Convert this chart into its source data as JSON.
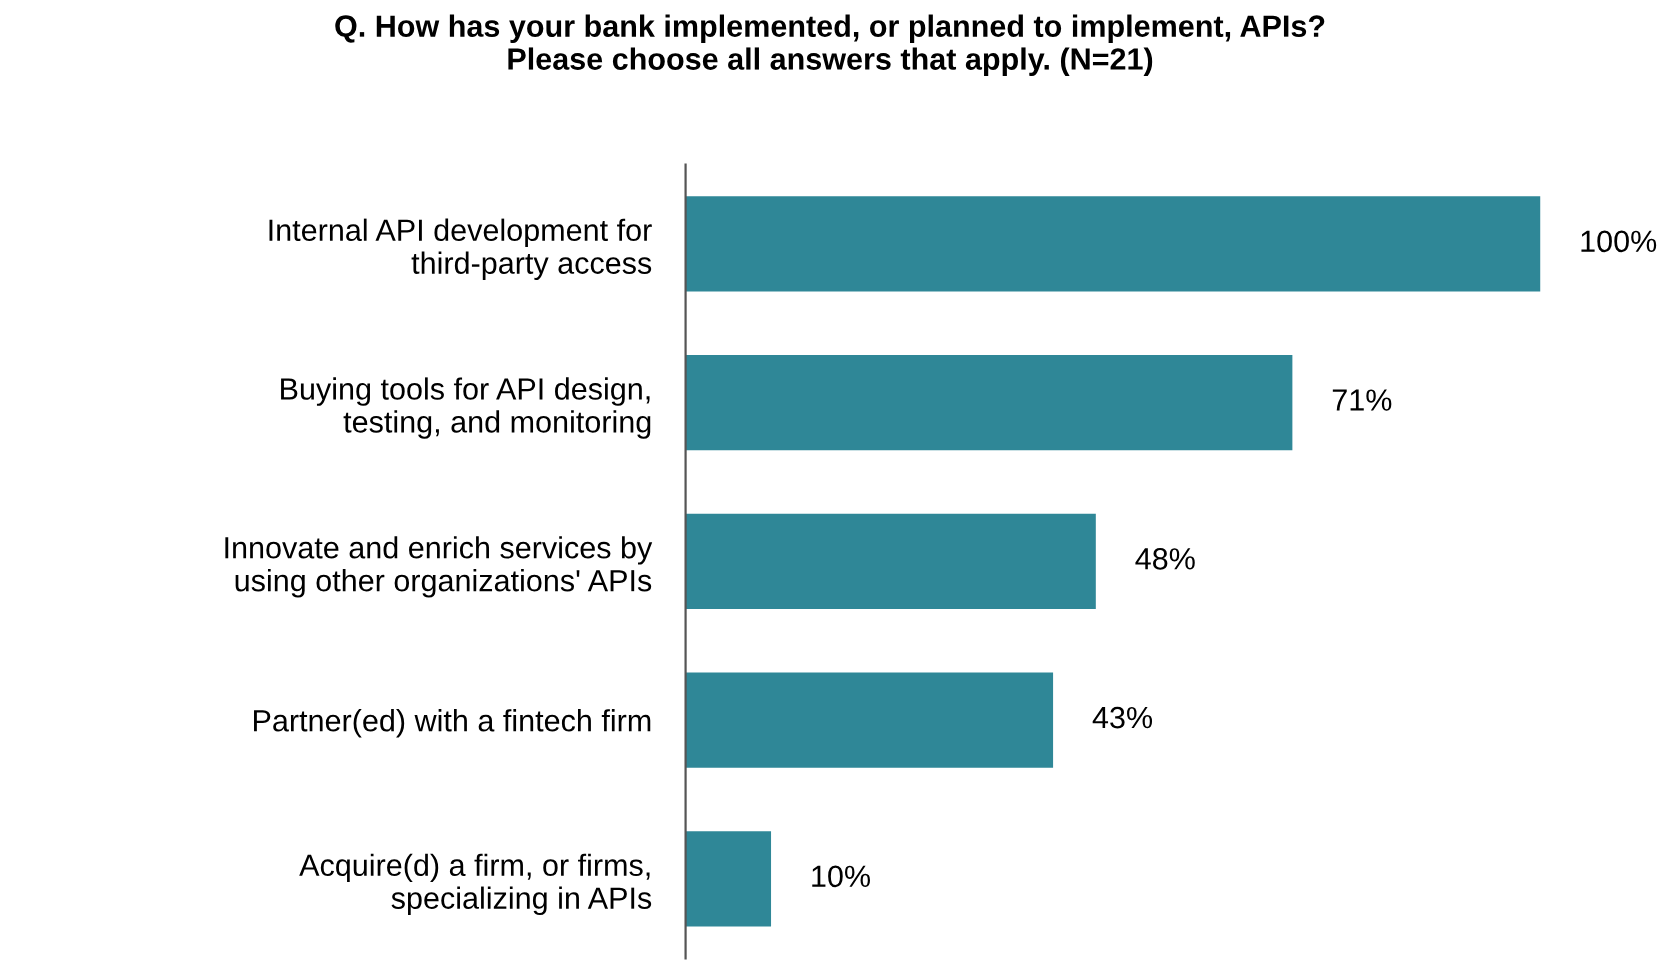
{
  "chart_data": {
    "type": "bar",
    "orientation": "horizontal",
    "title": "Q. How has your bank implemented, or planned to implement, APIs?\nPlease choose all answers that apply. (N=21)",
    "categories": [
      "Internal API development for\nthird-party access",
      "Buying tools for API design,\ntesting, and monitoring",
      "Innovate and enrich services by\nusing other organizations' APIs",
      "Partner(ed) with a fintech firm",
      "Acquire(d) a firm, or firms,\nspecializing in APIs"
    ],
    "values": [
      100,
      71,
      48,
      43,
      10
    ],
    "value_labels": [
      "100%",
      "71%",
      "48%",
      "43%",
      "10%"
    ],
    "color": "#2f8797",
    "grid": false,
    "legend": false
  }
}
